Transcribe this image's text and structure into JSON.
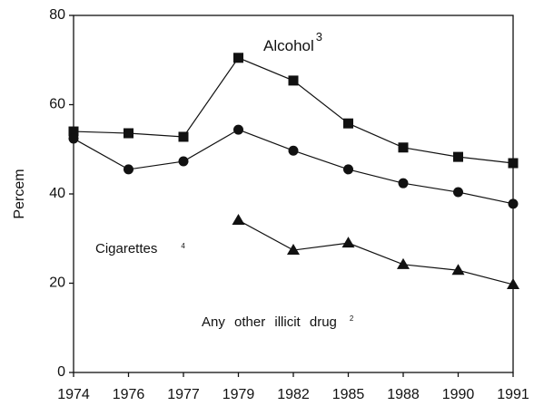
{
  "chart_data": {
    "type": "line",
    "ylabel": "Percem",
    "categories": [
      "1974",
      "1976",
      "1977",
      "1979",
      "1982",
      "1985",
      "1988",
      "1990",
      "1991"
    ],
    "series": [
      {
        "name": "Alcohol",
        "note": "3",
        "marker": "square",
        "color": "#111111",
        "values": [
          54.0,
          53.6,
          52.8,
          70.5,
          65.4,
          55.8,
          50.4,
          48.3,
          46.9
        ]
      },
      {
        "name": "Cigarettes",
        "note": "4",
        "marker": "circle",
        "color": "#111111",
        "values": [
          52.4,
          45.5,
          47.3,
          54.4,
          49.7,
          45.5,
          42.4,
          40.4,
          37.8
        ]
      },
      {
        "name": "Any other illicit drug",
        "note": "2",
        "marker": "triangle",
        "color": "#111111",
        "values": [
          null,
          null,
          null,
          34.1,
          27.4,
          29.0,
          24.2,
          22.9,
          19.7
        ]
      }
    ],
    "ylim": [
      0,
      80
    ],
    "yticks": [
      0,
      20,
      40,
      60,
      80
    ],
    "grid": false
  }
}
